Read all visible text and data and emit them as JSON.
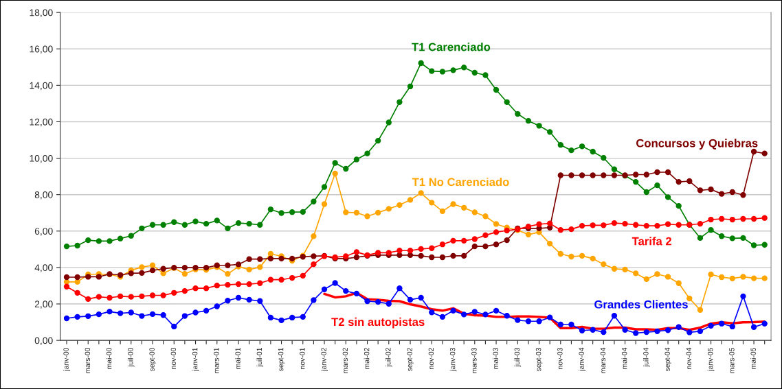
{
  "chart_data": {
    "type": "line",
    "categories": [
      "janv-00",
      null,
      "mars-00",
      null,
      "mai-00",
      null,
      "juil-00",
      null,
      "sept-00",
      null,
      "nov-00",
      null,
      "janv-01",
      null,
      "mars-01",
      null,
      "mai-01",
      null,
      "juil-01",
      null,
      "sept-01",
      null,
      "nov-01",
      null,
      "janv-02",
      null,
      "mars-02",
      null,
      "mai-02",
      null,
      "juil-02",
      null,
      "sept-02",
      null,
      "nov-02",
      null,
      "janv-03",
      null,
      "mars-03",
      null,
      "mai-03",
      null,
      "juil-03",
      null,
      "sept-03",
      null,
      "nov-03",
      null,
      "janv-04",
      null,
      "mars-04",
      null,
      "mai-04",
      null,
      "juil-04",
      null,
      "sept-04",
      null,
      "nov-04",
      null,
      "janv-05",
      null,
      "mars-05",
      null,
      "mai-05",
      null
    ],
    "series": [
      {
        "name": "T1 Carenciado",
        "color": "#008000",
        "marker": "circle",
        "values": [
          5.16,
          5.2,
          5.5,
          5.45,
          5.45,
          5.59,
          5.74,
          6.15,
          6.34,
          6.34,
          6.49,
          6.34,
          6.53,
          6.4,
          6.58,
          6.15,
          6.44,
          6.4,
          6.34,
          7.19,
          6.99,
          7.04,
          7.05,
          7.62,
          8.42,
          9.74,
          9.42,
          9.93,
          10.26,
          10.96,
          11.96,
          13.08,
          13.94,
          15.22,
          14.78,
          14.75,
          14.83,
          14.98,
          14.69,
          14.56,
          13.75,
          13.08,
          12.43,
          12.05,
          11.78,
          11.44,
          10.73,
          10.43,
          10.65,
          10.36,
          10.02,
          9.39,
          9.04,
          8.7,
          8.14,
          8.51,
          7.86,
          7.38,
          6.35,
          5.62,
          6.06,
          5.72,
          5.6,
          5.62,
          5.22,
          5.25
        ]
      },
      {
        "name": "T1 No Carenciado",
        "color": "#ffa500",
        "marker": "circle",
        "values": [
          3.21,
          3.21,
          3.62,
          3.64,
          3.62,
          3.49,
          3.85,
          4.02,
          4.12,
          3.68,
          3.97,
          3.65,
          3.89,
          3.87,
          4.02,
          3.65,
          4.05,
          3.89,
          4.02,
          4.75,
          4.62,
          4.37,
          4.65,
          5.72,
          7.48,
          9.16,
          7.03,
          7.01,
          6.81,
          7.01,
          7.22,
          7.43,
          7.71,
          8.09,
          7.56,
          7.09,
          7.48,
          7.28,
          7.03,
          6.81,
          6.39,
          6.19,
          6.05,
          5.81,
          5.94,
          5.31,
          4.75,
          4.6,
          4.64,
          4.49,
          4.18,
          3.93,
          3.89,
          3.68,
          3.36,
          3.64,
          3.49,
          3.14,
          2.3,
          1.67,
          3.62,
          3.47,
          3.4,
          3.49,
          3.41,
          3.41
        ]
      },
      {
        "name": "Concursos y Quiebras",
        "color": "#800000",
        "marker": "circle",
        "values": [
          3.47,
          3.47,
          3.49,
          3.49,
          3.64,
          3.59,
          3.68,
          3.7,
          3.84,
          3.93,
          3.99,
          3.99,
          3.99,
          3.99,
          4.12,
          4.12,
          4.17,
          4.46,
          4.46,
          4.49,
          4.49,
          4.49,
          4.59,
          4.62,
          4.64,
          4.49,
          4.49,
          4.56,
          4.64,
          4.68,
          4.68,
          4.68,
          4.68,
          4.64,
          4.56,
          4.56,
          4.64,
          4.64,
          5.16,
          5.16,
          5.27,
          5.5,
          6.15,
          6.15,
          6.15,
          6.19,
          9.06,
          9.06,
          9.06,
          9.06,
          9.06,
          9.06,
          9.06,
          9.1,
          9.1,
          9.23,
          9.23,
          8.7,
          8.74,
          8.24,
          8.29,
          8.04,
          8.14,
          7.98,
          10.36,
          10.26
        ]
      },
      {
        "name": "Tarifa 2",
        "color": "#ff0000",
        "marker": "circle",
        "values": [
          2.95,
          2.61,
          2.27,
          2.39,
          2.34,
          2.42,
          2.39,
          2.42,
          2.47,
          2.47,
          2.61,
          2.71,
          2.86,
          2.86,
          3.01,
          3.05,
          3.09,
          3.09,
          3.14,
          3.33,
          3.33,
          3.43,
          3.55,
          4.18,
          4.62,
          4.56,
          4.62,
          4.85,
          4.68,
          4.81,
          4.81,
          4.93,
          4.93,
          5.02,
          5.06,
          5.27,
          5.47,
          5.47,
          5.56,
          5.77,
          5.94,
          6.03,
          6.1,
          6.25,
          6.38,
          6.42,
          6.06,
          6.1,
          6.29,
          6.32,
          6.32,
          6.44,
          6.4,
          6.34,
          6.29,
          6.29,
          6.38,
          6.34,
          6.34,
          6.4,
          6.63,
          6.67,
          6.63,
          6.67,
          6.67,
          6.72
        ]
      },
      {
        "name": "Grandes Clientes",
        "color": "#0000ff",
        "marker": "circle",
        "values": [
          1.21,
          1.29,
          1.33,
          1.43,
          1.58,
          1.49,
          1.53,
          1.34,
          1.44,
          1.39,
          0.76,
          1.34,
          1.53,
          1.63,
          1.87,
          2.18,
          2.34,
          2.23,
          2.16,
          1.25,
          1.1,
          1.25,
          1.29,
          2.21,
          2.8,
          3.15,
          2.71,
          2.57,
          2.15,
          2.11,
          2.01,
          2.86,
          2.23,
          2.34,
          1.54,
          1.29,
          1.63,
          1.42,
          1.57,
          1.42,
          1.63,
          1.35,
          1.11,
          1.05,
          1.05,
          1.26,
          0.87,
          0.87,
          0.54,
          0.58,
          0.45,
          1.35,
          0.58,
          0.4,
          0.45,
          0.5,
          0.56,
          0.73,
          0.44,
          0.5,
          0.8,
          0.92,
          0.76,
          2.42,
          0.73,
          0.92
        ]
      },
      {
        "name": "T2 sin autopistas",
        "color": "#ff0000",
        "marker": "none",
        "values": [
          null,
          null,
          null,
          null,
          null,
          null,
          null,
          null,
          null,
          null,
          null,
          null,
          null,
          null,
          null,
          null,
          null,
          null,
          null,
          null,
          null,
          null,
          null,
          null,
          2.55,
          2.36,
          2.42,
          2.61,
          2.26,
          2.23,
          2.17,
          2.15,
          1.98,
          1.86,
          1.71,
          1.63,
          1.76,
          1.46,
          1.38,
          1.36,
          1.29,
          1.29,
          1.31,
          1.31,
          1.29,
          1.25,
          0.67,
          0.67,
          0.74,
          0.64,
          0.64,
          0.7,
          0.7,
          0.61,
          0.61,
          0.58,
          0.67,
          0.67,
          0.58,
          0.7,
          0.92,
          0.99,
          0.94,
          0.99,
          1.0,
          1.03
        ]
      }
    ],
    "ylim": [
      0,
      18
    ],
    "yticks": [
      {
        "value": 0,
        "label": "0,00"
      },
      {
        "value": 2,
        "label": "2,00"
      },
      {
        "value": 4,
        "label": "4,00"
      },
      {
        "value": 6,
        "label": "6,00"
      },
      {
        "value": 8,
        "label": "8,00"
      },
      {
        "value": 10,
        "label": "10,00"
      },
      {
        "value": 12,
        "label": "12,00"
      },
      {
        "value": 14,
        "label": "14,00"
      },
      {
        "value": 16,
        "label": "16,00"
      },
      {
        "value": 18,
        "label": "18,00"
      }
    ],
    "grid": "y"
  }
}
